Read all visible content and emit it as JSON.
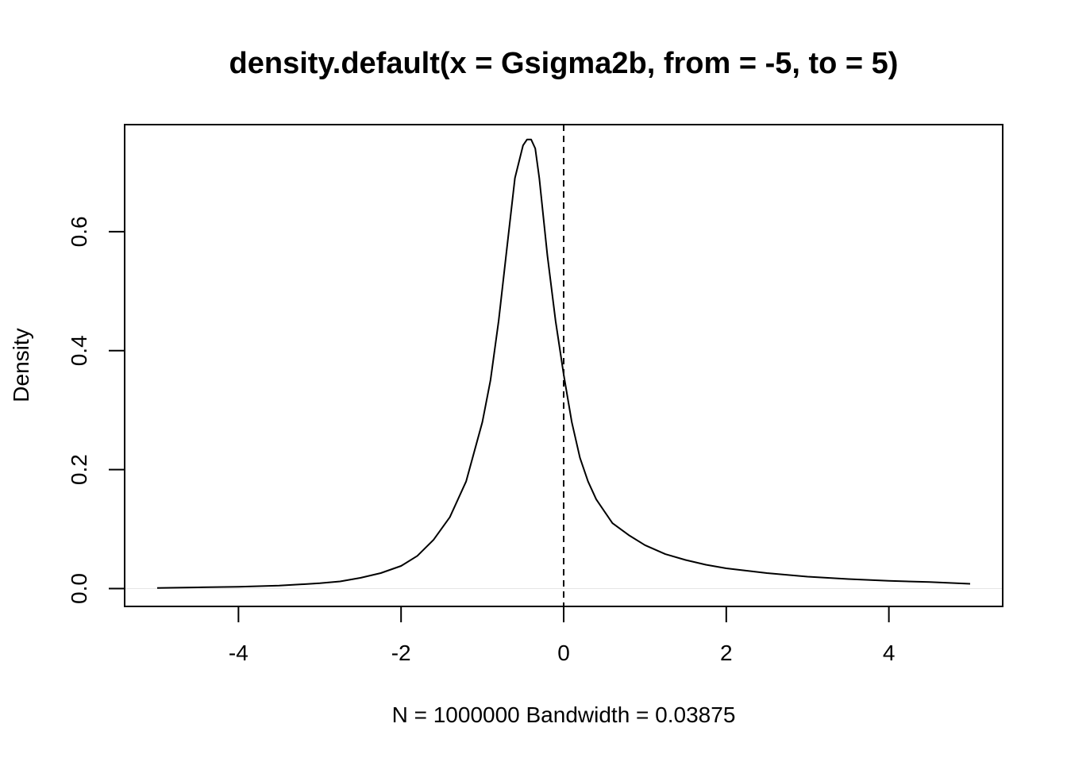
{
  "chart_data": {
    "type": "line",
    "title": "density.default(x = Gsigma2b, from = -5, to = 5)",
    "xlabel": "N = 1000000   Bandwidth = 0.03875",
    "ylabel": "Density",
    "xlim": [
      -5.4,
      5.4
    ],
    "ylim": [
      -0.03,
      0.78
    ],
    "x_ticks": [
      -4,
      -2,
      0,
      2,
      4
    ],
    "x_tick_labels": [
      "-4",
      "-2",
      "0",
      "2",
      "4"
    ],
    "y_ticks": [
      0.0,
      0.2,
      0.4,
      0.6
    ],
    "y_tick_labels": [
      "0.0",
      "0.2",
      "0.4",
      "0.6"
    ],
    "grid": false,
    "reference_line": {
      "x": 0,
      "style": "dashed"
    },
    "series": [
      {
        "x": [
          -5.0,
          -4.5,
          -4.0,
          -3.5,
          -3.0,
          -2.75,
          -2.5,
          -2.25,
          -2.0,
          -1.8,
          -1.6,
          -1.4,
          -1.2,
          -1.0,
          -0.9,
          -0.8,
          -0.7,
          -0.6,
          -0.5,
          -0.45,
          -0.4,
          -0.35,
          -0.3,
          -0.2,
          -0.1,
          0.0,
          0.1,
          0.2,
          0.3,
          0.4,
          0.6,
          0.8,
          1.0,
          1.25,
          1.5,
          1.75,
          2.0,
          2.5,
          3.0,
          3.5,
          4.0,
          4.5,
          5.0
        ],
        "values": [
          0.001,
          0.002,
          0.003,
          0.005,
          0.009,
          0.012,
          0.018,
          0.026,
          0.038,
          0.055,
          0.082,
          0.12,
          0.18,
          0.28,
          0.35,
          0.45,
          0.57,
          0.69,
          0.745,
          0.755,
          0.755,
          0.74,
          0.69,
          0.56,
          0.45,
          0.36,
          0.28,
          0.22,
          0.18,
          0.15,
          0.11,
          0.09,
          0.073,
          0.058,
          0.048,
          0.04,
          0.034,
          0.026,
          0.02,
          0.016,
          0.013,
          0.011,
          0.008
        ]
      }
    ]
  }
}
